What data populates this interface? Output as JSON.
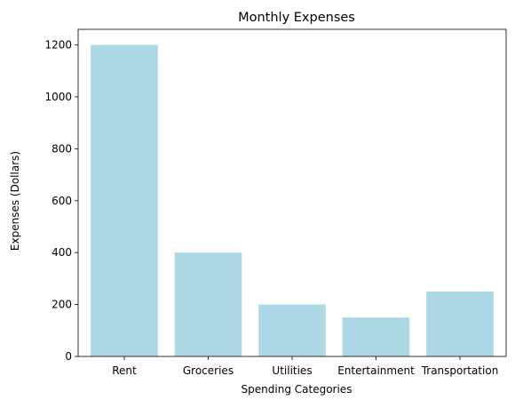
{
  "chart_data": {
    "type": "bar",
    "title": "Monthly Expenses",
    "xlabel": "Spending Categories",
    "ylabel": "Expenses (Dollars)",
    "categories": [
      "Rent",
      "Groceries",
      "Utilities",
      "Entertainment",
      "Transportation"
    ],
    "values": [
      1200,
      400,
      200,
      150,
      250
    ],
    "ylim": [
      0,
      1260
    ],
    "yticks": [
      0,
      200,
      400,
      600,
      800,
      1000,
      1200
    ],
    "bar_color": "#add8e6",
    "grid": false,
    "legend": "none"
  }
}
